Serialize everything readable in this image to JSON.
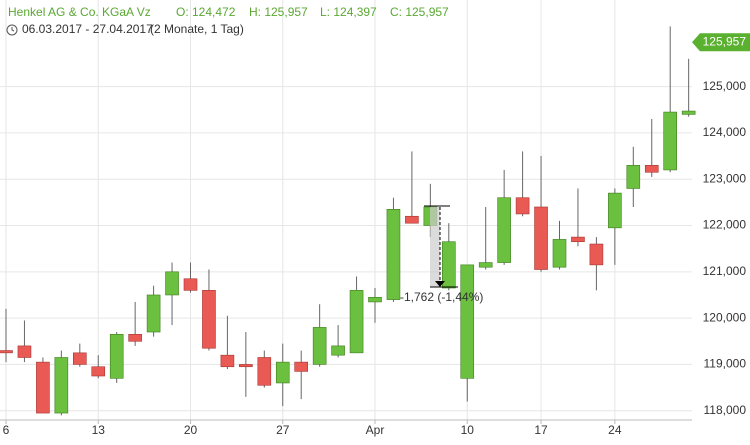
{
  "chart_data": {
    "type": "candlestick",
    "header": {
      "name": "Henkel AG & Co. KGaA Vz",
      "open": "O: 124,472",
      "high": "H: 125,957",
      "low": "L: 124,397",
      "close": "C: 125,957"
    },
    "range_text": "06.03.2017 - 27.04.2017",
    "period_text": "(2 Monate, 1 Tag)",
    "categories": [
      "6",
      null,
      null,
      null,
      null,
      "13",
      null,
      null,
      null,
      null,
      "20",
      null,
      null,
      null,
      null,
      "27",
      null,
      null,
      null,
      null,
      "Apr",
      null,
      null,
      null,
      null,
      "10",
      null,
      null,
      null,
      "17",
      null,
      null,
      null,
      "24",
      null,
      null,
      null,
      null
    ],
    "open": [
      119300,
      119400,
      119050,
      117950,
      119250,
      118950,
      118700,
      119650,
      119700,
      120500,
      120850,
      120600,
      119200,
      119000,
      119150,
      118600,
      119050,
      119000,
      119200,
      119250,
      120350,
      120400,
      122200,
      122000,
      120650,
      118700,
      121100,
      121200,
      122600,
      122400,
      121100,
      121750,
      121600,
      121950,
      122800,
      123300,
      123200,
      124400
    ],
    "high": [
      120200,
      119950,
      119150,
      119300,
      119450,
      119200,
      119700,
      120350,
      120700,
      121200,
      121200,
      121050,
      120050,
      119700,
      119300,
      119450,
      119300,
      120300,
      119850,
      120900,
      120650,
      122600,
      123600,
      122900,
      122050,
      121150,
      122400,
      123200,
      123600,
      123500,
      122100,
      122800,
      121750,
      122800,
      123700,
      124300,
      126300,
      125600
    ],
    "low": [
      119050,
      119050,
      117950,
      117900,
      118950,
      118700,
      118600,
      119400,
      119600,
      119850,
      120550,
      119300,
      118900,
      118300,
      118500,
      118100,
      118250,
      118950,
      119150,
      119250,
      119900,
      120350,
      122050,
      121750,
      120600,
      118200,
      121050,
      121150,
      122200,
      121000,
      121050,
      121550,
      120600,
      121150,
      122400,
      123050,
      123150,
      124350
    ],
    "close": [
      119250,
      119150,
      117950,
      119150,
      119000,
      118750,
      119650,
      119500,
      120500,
      121000,
      120600,
      119350,
      118950,
      118950,
      118550,
      119050,
      118850,
      119800,
      119400,
      120600,
      120450,
      122350,
      122050,
      122400,
      121650,
      121150,
      121200,
      122600,
      122250,
      121050,
      121700,
      121650,
      121150,
      122700,
      123300,
      123150,
      124450,
      124472
    ],
    "up_color": "#6cc03f",
    "down_color": "#ea5a55",
    "ylim": [
      117800,
      126870
    ],
    "yticks": [
      {
        "value": 118000,
        "label": "118,000"
      },
      {
        "value": 119000,
        "label": "119,000"
      },
      {
        "value": 120000,
        "label": "120,000"
      },
      {
        "value": 121000,
        "label": "121,000"
      },
      {
        "value": 122000,
        "label": "122,000"
      },
      {
        "value": 123000,
        "label": "123,000"
      },
      {
        "value": 124000,
        "label": "124,000"
      },
      {
        "value": 125000,
        "label": "125,000"
      }
    ],
    "price_tag": {
      "value": 125957,
      "label": "125,957"
    },
    "annotation": "-1,762 (-1,44%)",
    "grid": true
  }
}
